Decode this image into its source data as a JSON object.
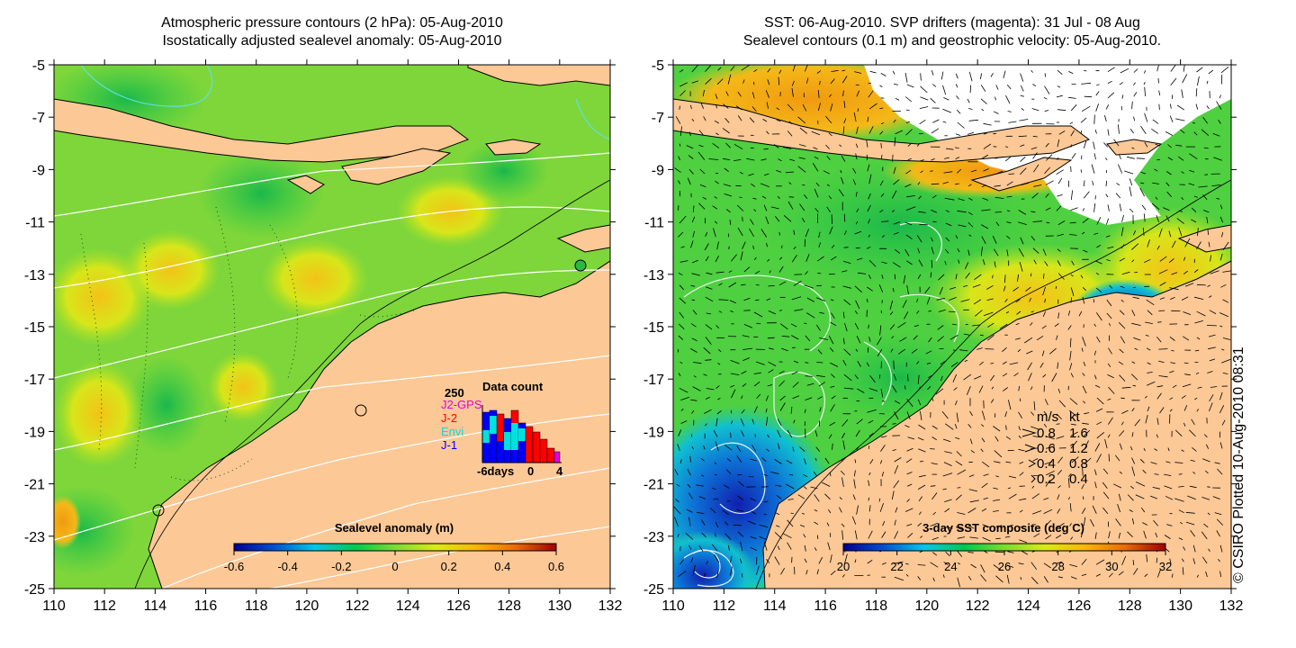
{
  "left_panel": {
    "title_line1": "Atmospheric pressure contours (2 hPa): 05-Aug-2010",
    "title_line2": "Isostatically adjusted sealevel anomaly: 05-Aug-2010",
    "colorbar": {
      "label": "Sealevel anomaly (m)",
      "ticks": [
        "-0.6",
        "-0.4",
        "-0.2",
        "0",
        "0.2",
        "0.4",
        "0.6"
      ],
      "colors": [
        "#00008f",
        "#0050d0",
        "#00c8e8",
        "#00c850",
        "#7cdc2c",
        "#d8ec10",
        "#f8b800",
        "#f06800",
        "#a00000"
      ]
    },
    "inset": {
      "title": "Data count",
      "ymax": "250",
      "x_labels": [
        "-6days",
        "0",
        "4"
      ],
      "legend": [
        {
          "label": "J2-GPS",
          "color": "#e000e0"
        },
        {
          "label": "J-2",
          "color": "#ff0000"
        },
        {
          "label": "Envi",
          "color": "#00e0e0"
        },
        {
          "label": "J-1",
          "color": "#0000ff"
        }
      ]
    }
  },
  "right_panel": {
    "title_line1": "SST: 06-Aug-2010. SVP drifters (magenta): 31 Jul - 08 Aug",
    "title_line2": "Sealevel contours (0.1 m) and geostrophic velocity: 05-Aug-2010.",
    "colorbar": {
      "label": "3-day SST composite (deg C)",
      "ticks": [
        "20",
        "22",
        "24",
        "26",
        "28",
        "30",
        "32"
      ],
      "colors": [
        "#00008f",
        "#0050d0",
        "#00c8e8",
        "#00c850",
        "#7cdc2c",
        "#d8ec10",
        "#f8b800",
        "#f06800",
        "#a00000"
      ]
    },
    "velocity_legend": {
      "header_ms": "m/s",
      "header_kt": "kt",
      "rows": [
        {
          "ms": "0.8",
          "kt": "1.6"
        },
        {
          "ms": "0.6",
          "kt": "1.2"
        },
        {
          "ms": "0.4",
          "kt": "0.8"
        },
        {
          "ms": "0.2",
          "kt": "0.4"
        }
      ]
    }
  },
  "axes": {
    "y_ticks": [
      "-5",
      "-7",
      "-9",
      "-11",
      "-13",
      "-15",
      "-17",
      "-19",
      "-21",
      "-23",
      "-25"
    ],
    "x_ticks": [
      "110",
      "112",
      "114",
      "116",
      "118",
      "120",
      "122",
      "124",
      "126",
      "128",
      "130",
      "132"
    ]
  },
  "credit": "© CSIRO Plotted 10-Aug-2010 08:31",
  "colors": {
    "land": "#fbc896",
    "ocean_base": "#3cd23c",
    "contour": "#ffffff",
    "coast": "#000000"
  }
}
